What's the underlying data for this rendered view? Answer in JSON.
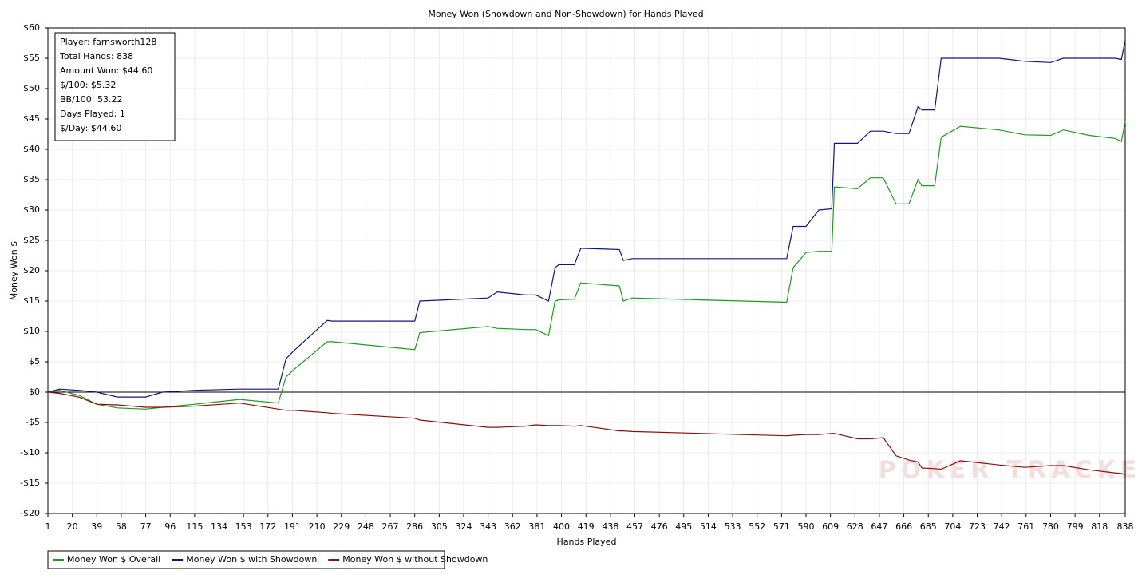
{
  "chart_data": {
    "type": "line",
    "title": "Money Won (Showdown and Non-Showdown) for Hands Played",
    "xlabel": "Hands Played",
    "ylabel": "Money Won $",
    "info_box": [
      "Player: farnsworth128",
      "Total Hands: 838",
      "Amount Won: $44.60",
      "$/100: $5.32",
      "BB/100: 53.22",
      "Days Played: 1",
      "$/Day: $44.60"
    ],
    "watermark": "POKER TRACKER",
    "grid": true,
    "legend": "bottom-left",
    "x": [
      1,
      10,
      25,
      39,
      55,
      77,
      90,
      115,
      150,
      180,
      186,
      192,
      218,
      222,
      286,
      290,
      343,
      350,
      372,
      380,
      390,
      395,
      398,
      410,
      415,
      445,
      448,
      455,
      575,
      580,
      590,
      600,
      610,
      612,
      630,
      640,
      650,
      660,
      670,
      677,
      680,
      690,
      695,
      710,
      740,
      760,
      780,
      790,
      810,
      830,
      835,
      838
    ],
    "series": [
      {
        "name": "Money Won $ Overall",
        "color": "#1e9a1e",
        "values": [
          0,
          0.3,
          -0.5,
          -2,
          -2.6,
          -2.8,
          -2.5,
          -2,
          -1.2,
          -1.8,
          2.5,
          3.7,
          8.3,
          8.3,
          7,
          9.8,
          10.8,
          10.5,
          10.3,
          10.3,
          9.3,
          15,
          15.2,
          15.3,
          18,
          17.5,
          15,
          15.5,
          14.8,
          20.5,
          23,
          23.2,
          23.2,
          33.8,
          33.5,
          35.3,
          35.3,
          31,
          31,
          35,
          34,
          34,
          42,
          43.8,
          43.2,
          42.4,
          42.3,
          43.2,
          42.3,
          41.8,
          41.3,
          44.6
        ]
      },
      {
        "name": "Money Won $ with Showdown",
        "color": "#14147a",
        "values": [
          0,
          0.5,
          0.3,
          0,
          -0.8,
          -0.8,
          0,
          0.3,
          0.5,
          0.5,
          5.5,
          6.8,
          11.8,
          11.7,
          11.7,
          15,
          15.5,
          16.5,
          16,
          16,
          15,
          20.5,
          21,
          21,
          23.7,
          23.5,
          21.7,
          22,
          22,
          27.3,
          27.3,
          30,
          30.2,
          41,
          41,
          43,
          43,
          42.6,
          42.6,
          47,
          46.5,
          46.5,
          55,
          55,
          55,
          54.5,
          54.3,
          55,
          55,
          55,
          54.8,
          58
        ]
      },
      {
        "name": "Money Won $ without Showdown",
        "color": "#8a1010",
        "values": [
          0,
          -0.2,
          -0.8,
          -2,
          -2.1,
          -2.5,
          -2.5,
          -2.3,
          -1.8,
          -2.8,
          -3,
          -3,
          -3.4,
          -3.5,
          -4.3,
          -4.6,
          -5.8,
          -5.8,
          -5.6,
          -5.4,
          -5.5,
          -5.5,
          -5.5,
          -5.6,
          -5.5,
          -6.4,
          -6.4,
          -6.5,
          -7.2,
          -7.1,
          -7,
          -7,
          -6.8,
          -6.8,
          -7.7,
          -7.7,
          -7.5,
          -10.5,
          -11.2,
          -11.5,
          -12.5,
          -12.6,
          -12.7,
          -11.3,
          -12,
          -12.4,
          -12.1,
          -12.1,
          -12.8,
          -13.3,
          -13.4,
          -13.6
        ]
      }
    ],
    "xlim": [
      1,
      838
    ],
    "xticks": [
      1,
      20,
      39,
      58,
      77,
      96,
      115,
      134,
      153,
      172,
      191,
      210,
      229,
      248,
      267,
      286,
      305,
      324,
      343,
      362,
      381,
      400,
      419,
      438,
      457,
      476,
      495,
      514,
      533,
      552,
      571,
      590,
      609,
      628,
      647,
      666,
      685,
      704,
      723,
      742,
      761,
      780,
      799,
      818,
      838
    ],
    "ylim": [
      -20,
      60
    ],
    "yticks": [
      {
        "value": -20,
        "label": "-$20"
      },
      {
        "value": -15,
        "label": "-$15"
      },
      {
        "value": -10,
        "label": "-$10"
      },
      {
        "value": -5,
        "label": "-$5"
      },
      {
        "value": 0,
        "label": "$0"
      },
      {
        "value": 5,
        "label": "$5"
      },
      {
        "value": 10,
        "label": "$10"
      },
      {
        "value": 15,
        "label": "$15"
      },
      {
        "value": 20,
        "label": "$20"
      },
      {
        "value": 25,
        "label": "$25"
      },
      {
        "value": 30,
        "label": "$30"
      },
      {
        "value": 35,
        "label": "$35"
      },
      {
        "value": 40,
        "label": "$40"
      },
      {
        "value": 45,
        "label": "$45"
      },
      {
        "value": 50,
        "label": "$50"
      },
      {
        "value": 55,
        "label": "$55"
      },
      {
        "value": 60,
        "label": "$60"
      }
    ]
  }
}
